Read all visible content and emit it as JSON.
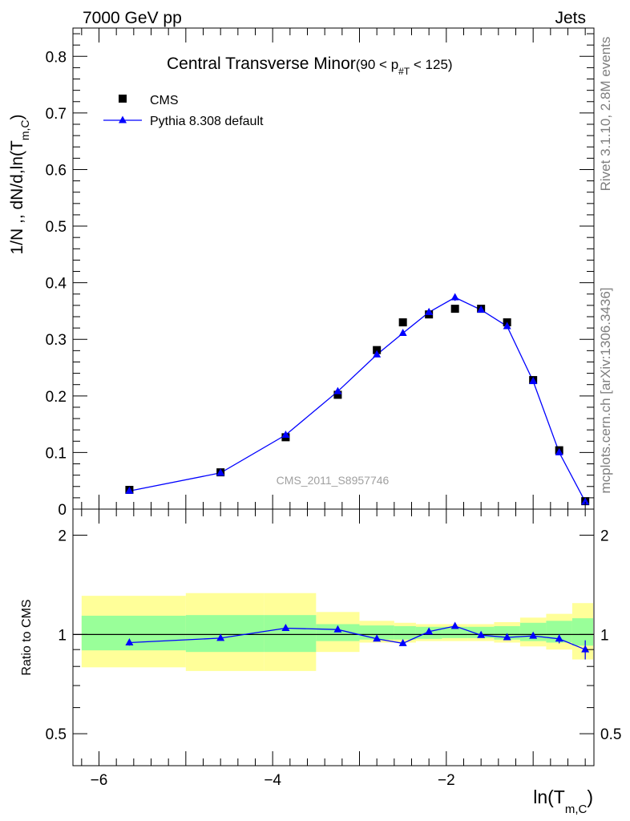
{
  "header": {
    "energy_label": "7000 GeV pp",
    "process_label": "Jets",
    "rivet_label": "Rivet 3.1.10,  2.8M events",
    "source_label": "mcplots.cern.ch [arXiv:1306.3436]",
    "analysis_label": "CMS_2011_S8957746"
  },
  "title": {
    "main": "Central Transverse Minor",
    "cut": "(90 < p",
    "cut_sub": "#T",
    "cut_end": "  < 125)"
  },
  "axes": {
    "ylabel_main": "1/N ,, dN/d,ln(T",
    "ylabel_sub": "m,C",
    "ylabel_end": ")",
    "xlabel_main": "ln(T",
    "xlabel_sub": "m,C",
    "xlabel_end": ")",
    "ratio_ylabel": "Ratio to CMS"
  },
  "legend": {
    "data_label": "CMS",
    "mc_label": "Pythia 8.308 default"
  },
  "colors": {
    "data": "#000000",
    "mc": "#0000ff",
    "band_inner": "#99ff99",
    "band_outer": "#ffff99"
  },
  "chart_data": [
    {
      "type": "scatter",
      "panel": "main",
      "xlim": [
        -6.3,
        -0.3
      ],
      "ylim": [
        0,
        0.85
      ],
      "xticks": [
        -6,
        -4,
        -2
      ],
      "xtick_labels": [
        "−6",
        "−4",
        "−2"
      ],
      "yticks": [
        0,
        0.1,
        0.2,
        0.3,
        0.4,
        0.5,
        0.6,
        0.7,
        0.8
      ],
      "ytick_labels": [
        "0",
        "0.1",
        "0.2",
        "0.3",
        "0.4",
        "0.5",
        "0.6",
        "0.7",
        "0.8"
      ],
      "series": [
        {
          "name": "CMS",
          "x": [
            -5.65,
            -4.6,
            -3.85,
            -3.25,
            -2.8,
            -2.5,
            -2.2,
            -1.9,
            -1.6,
            -1.3,
            -1.0,
            -0.7,
            -0.4
          ],
          "y": [
            0.034,
            0.065,
            0.127,
            0.202,
            0.281,
            0.33,
            0.344,
            0.354,
            0.354,
            0.33,
            0.228,
            0.104,
            0.014
          ]
        },
        {
          "name": "Pythia 8.308 default",
          "x": [
            -5.65,
            -4.6,
            -3.85,
            -3.25,
            -2.8,
            -2.5,
            -2.2,
            -1.9,
            -1.6,
            -1.3,
            -1.0,
            -0.7,
            -0.4
          ],
          "y": [
            0.032,
            0.064,
            0.131,
            0.208,
            0.273,
            0.311,
            0.348,
            0.374,
            0.352,
            0.323,
            0.226,
            0.1,
            0.013
          ],
          "yerr": [
            0.001,
            0.001,
            0.002,
            0.002,
            0.003,
            0.004,
            0.005,
            0.006,
            0.004,
            0.004,
            0.003,
            0.003,
            0.002
          ]
        }
      ]
    },
    {
      "type": "line",
      "panel": "ratio",
      "xlim": [
        -6.3,
        -0.3
      ],
      "ylim": [
        0.4,
        2.4
      ],
      "ylog": true,
      "yticks": [
        0.5,
        1,
        2
      ],
      "ytick_labels": [
        "0.5",
        "1",
        "2"
      ],
      "band_edges": [
        -6.2,
        -5.0,
        -4.1,
        -3.5,
        -3.0,
        -2.6,
        -2.35,
        -2.05,
        -1.75,
        -1.45,
        -1.15,
        -0.85,
        -0.55,
        -0.25
      ],
      "band_inner_low": [
        0.895,
        0.885,
        0.885,
        0.955,
        0.965,
        0.965,
        0.97,
        0.975,
        0.975,
        0.965,
        0.955,
        0.945,
        0.925
      ],
      "band_inner_high": [
        1.14,
        1.145,
        1.145,
        1.075,
        1.065,
        1.06,
        1.055,
        1.055,
        1.055,
        1.06,
        1.085,
        1.1,
        1.12
      ],
      "band_outer_low": [
        0.795,
        0.775,
        0.775,
        0.885,
        0.945,
        0.945,
        0.955,
        0.955,
        0.955,
        0.945,
        0.92,
        0.9,
        0.84
      ],
      "band_outer_high": [
        1.31,
        1.335,
        1.335,
        1.17,
        1.1,
        1.085,
        1.075,
        1.075,
        1.075,
        1.09,
        1.125,
        1.155,
        1.245
      ],
      "series": [
        {
          "name": "Pythia 8.308 default",
          "x": [
            -5.65,
            -4.6,
            -3.85,
            -3.25,
            -2.8,
            -2.5,
            -2.2,
            -1.9,
            -1.6,
            -1.3,
            -1.0,
            -0.7,
            -0.4
          ],
          "y": [
            0.945,
            0.975,
            1.045,
            1.035,
            0.97,
            0.94,
            1.02,
            1.06,
            0.995,
            0.98,
            0.99,
            0.97,
            0.9
          ],
          "yerr": [
            0.02,
            0.01,
            0.01,
            0.01,
            0.01,
            0.01,
            0.012,
            0.015,
            0.012,
            0.012,
            0.014,
            0.03,
            0.06
          ]
        }
      ]
    }
  ]
}
